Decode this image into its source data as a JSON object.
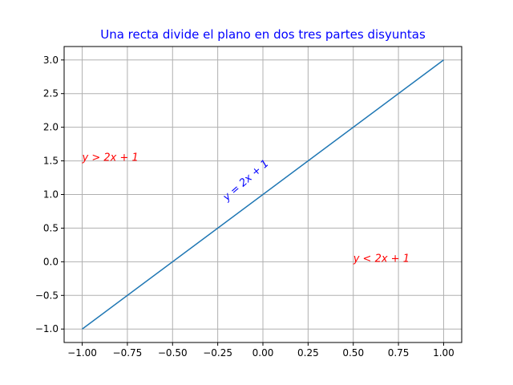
{
  "chart_data": {
    "type": "line",
    "title": "Una recta divide el plano en dos tres partes disyuntas",
    "xlabel": "",
    "ylabel": "",
    "xlim": [
      -1.1,
      1.1
    ],
    "ylim": [
      -1.2,
      3.2
    ],
    "grid": true,
    "x_ticks": [
      -1.0,
      -0.75,
      -0.5,
      -0.25,
      0.0,
      0.25,
      0.5,
      0.75,
      1.0
    ],
    "x_tick_labels": [
      "−1.00",
      "−0.75",
      "−0.50",
      "−0.25",
      "0.00",
      "0.25",
      "0.50",
      "0.75",
      "1.00"
    ],
    "y_ticks": [
      -1.0,
      -0.5,
      0.0,
      0.5,
      1.0,
      1.5,
      2.0,
      2.5,
      3.0
    ],
    "y_tick_labels": [
      "−1.0",
      "−0.5",
      "0.0",
      "0.5",
      "1.0",
      "1.5",
      "2.0",
      "2.5",
      "3.0"
    ],
    "series": [
      {
        "x": [
          -1.0,
          1.0
        ],
        "y": [
          -1.0,
          3.0
        ],
        "color": "#1f77b4"
      }
    ],
    "annotations": [
      {
        "text": "y > 2x + 1",
        "x": -1.0,
        "y": 1.5,
        "color": "#ff0000",
        "rotation": 0
      },
      {
        "text": "y = 2x + 1",
        "x": -0.2,
        "y": 0.9,
        "color": "#0000ff",
        "rotation": -41
      },
      {
        "text": "y < 2x + 1",
        "x": 0.5,
        "y": 0.0,
        "color": "#ff0000",
        "rotation": 0
      }
    ],
    "title_color": "#0000ff",
    "grid_color": "#b0b0b0"
  }
}
